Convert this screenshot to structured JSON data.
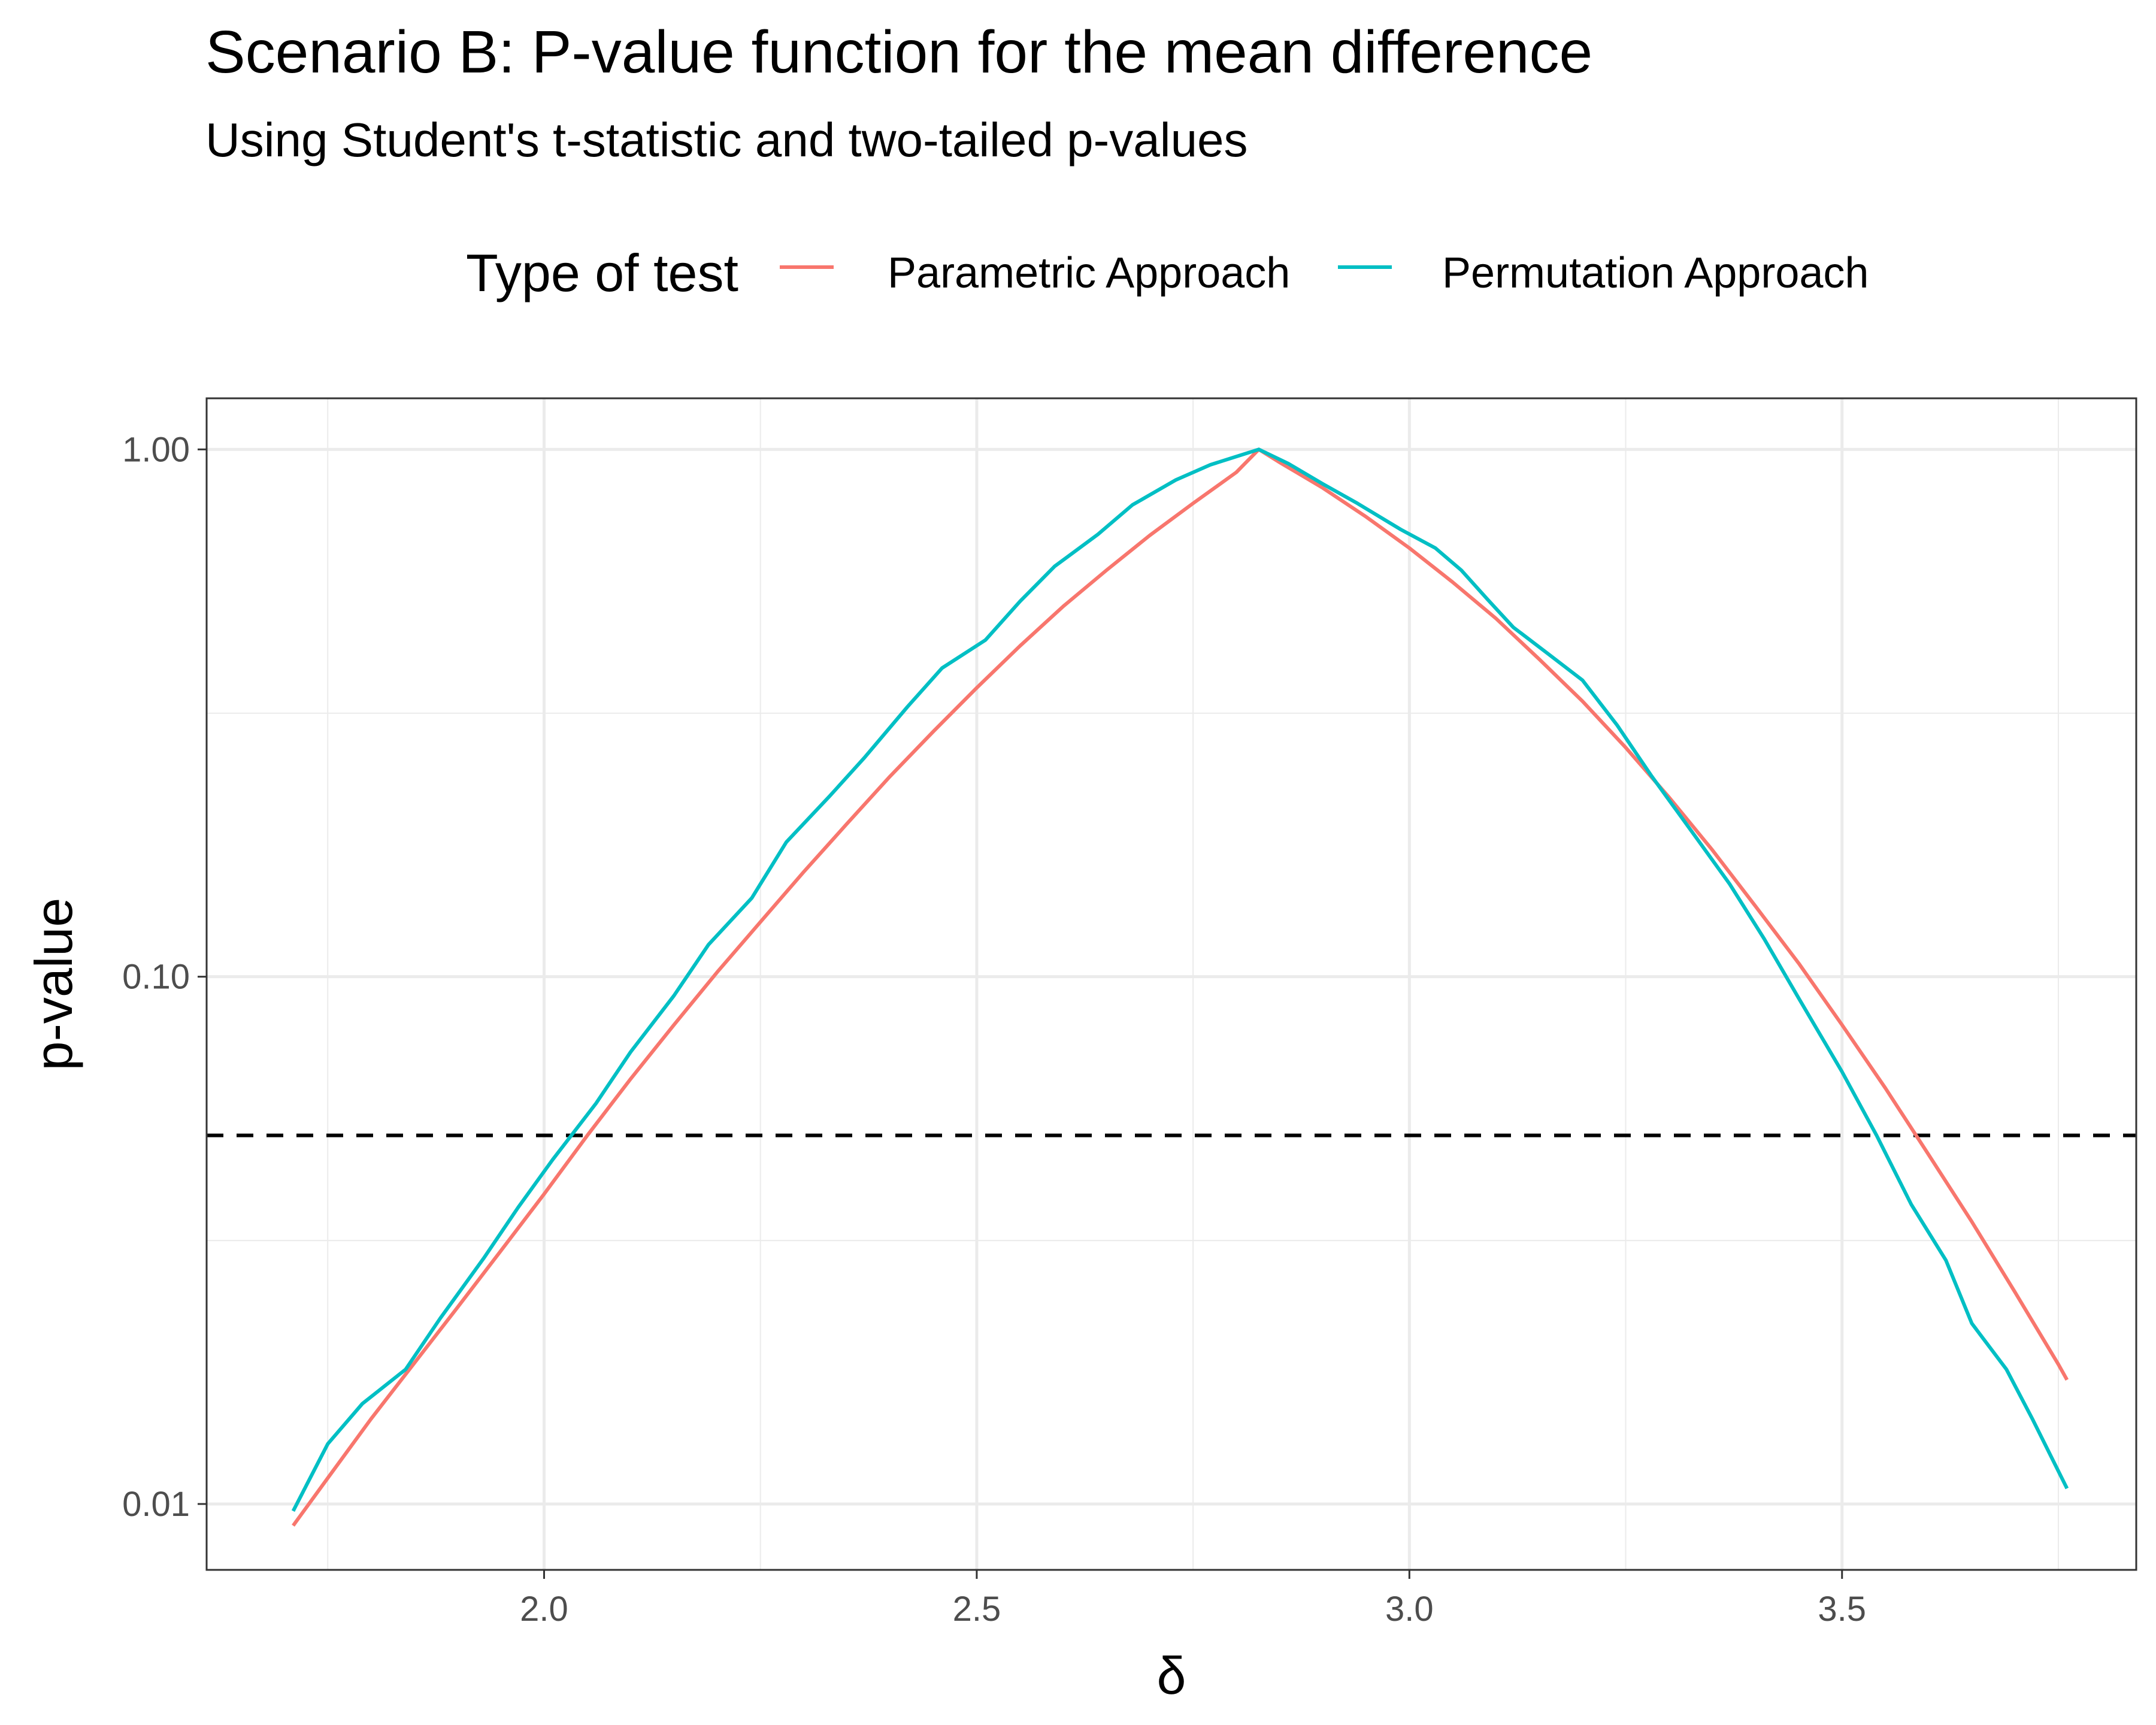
{
  "chart_data": {
    "type": "line",
    "title": "Scenario B: P-value function for the mean difference",
    "subtitle": "Using Student's t-statistic and two-tailed p-values",
    "xlabel": "δ",
    "ylabel": "p-value",
    "x_scale": "linear",
    "y_scale": "log10",
    "xlim": [
      1.61,
      3.84
    ],
    "ylim": [
      0.0075,
      1.25
    ],
    "x_ticks": [
      2.0,
      2.5,
      3.0,
      3.5
    ],
    "x_tick_labels": [
      "2.0",
      "2.5",
      "3.0",
      "3.5"
    ],
    "x_minor_ticks": [
      1.75,
      2.25,
      2.75,
      3.25,
      3.75
    ],
    "y_ticks": [
      0.01,
      0.1,
      1.0
    ],
    "y_tick_labels": [
      "0.01",
      "0.10",
      "1.00"
    ],
    "y_minor_ticks": [
      0.0316,
      0.316
    ],
    "grid": true,
    "legend": {
      "title": "Type of test",
      "position": "top",
      "entries": [
        "Parametric Approach",
        "Permutation Approach"
      ]
    },
    "reference_line": {
      "orientation": "horizontal",
      "y": 0.05,
      "style": "dashed",
      "color": "#000000"
    },
    "series": [
      {
        "name": "Parametric Approach",
        "color": "#F8766D",
        "x": [
          1.71,
          1.75,
          1.8,
          1.85,
          1.9,
          1.95,
          2.0,
          2.05,
          2.1,
          2.15,
          2.2,
          2.25,
          2.3,
          2.35,
          2.4,
          2.45,
          2.5,
          2.55,
          2.6,
          2.65,
          2.7,
          2.75,
          2.8,
          2.826,
          2.85,
          2.9,
          2.95,
          3.0,
          3.05,
          3.1,
          3.15,
          3.2,
          3.25,
          3.3,
          3.35,
          3.4,
          3.45,
          3.5,
          3.55,
          3.6,
          3.65,
          3.7,
          3.75,
          3.76
        ],
        "y": [
          0.0091,
          0.0112,
          0.0145,
          0.0185,
          0.0236,
          0.0302,
          0.0387,
          0.05,
          0.064,
          0.081,
          0.102,
          0.127,
          0.158,
          0.195,
          0.24,
          0.292,
          0.353,
          0.424,
          0.504,
          0.59,
          0.687,
          0.79,
          0.905,
          1.0,
          0.945,
          0.845,
          0.745,
          0.65,
          0.56,
          0.478,
          0.4,
          0.333,
          0.272,
          0.219,
          0.174,
          0.136,
          0.106,
          0.081,
          0.0615,
          0.046,
          0.0343,
          0.0252,
          0.0184,
          0.0172
        ]
      },
      {
        "name": "Permutation Approach",
        "color": "#00BFC4",
        "x": [
          1.71,
          1.75,
          1.79,
          1.84,
          1.88,
          1.93,
          1.97,
          2.01,
          2.06,
          2.1,
          2.15,
          2.19,
          2.24,
          2.28,
          2.33,
          2.37,
          2.42,
          2.46,
          2.51,
          2.55,
          2.59,
          2.64,
          2.68,
          2.73,
          2.77,
          2.826,
          2.86,
          2.9,
          2.94,
          2.99,
          3.03,
          3.06,
          3.09,
          3.12,
          3.16,
          3.2,
          3.24,
          3.28,
          3.33,
          3.37,
          3.41,
          3.45,
          3.5,
          3.54,
          3.58,
          3.62,
          3.65,
          3.69,
          3.72,
          3.76
        ],
        "y": [
          0.0097,
          0.013,
          0.0155,
          0.018,
          0.0225,
          0.0292,
          0.0365,
          0.045,
          0.0575,
          0.072,
          0.092,
          0.115,
          0.141,
          0.18,
          0.22,
          0.26,
          0.325,
          0.385,
          0.435,
          0.515,
          0.6,
          0.69,
          0.785,
          0.875,
          0.935,
          1.0,
          0.94,
          0.86,
          0.79,
          0.705,
          0.65,
          0.59,
          0.52,
          0.46,
          0.41,
          0.365,
          0.3,
          0.24,
          0.185,
          0.15,
          0.118,
          0.091,
          0.066,
          0.05,
          0.037,
          0.029,
          0.022,
          0.018,
          0.0145,
          0.0107
        ]
      }
    ]
  }
}
